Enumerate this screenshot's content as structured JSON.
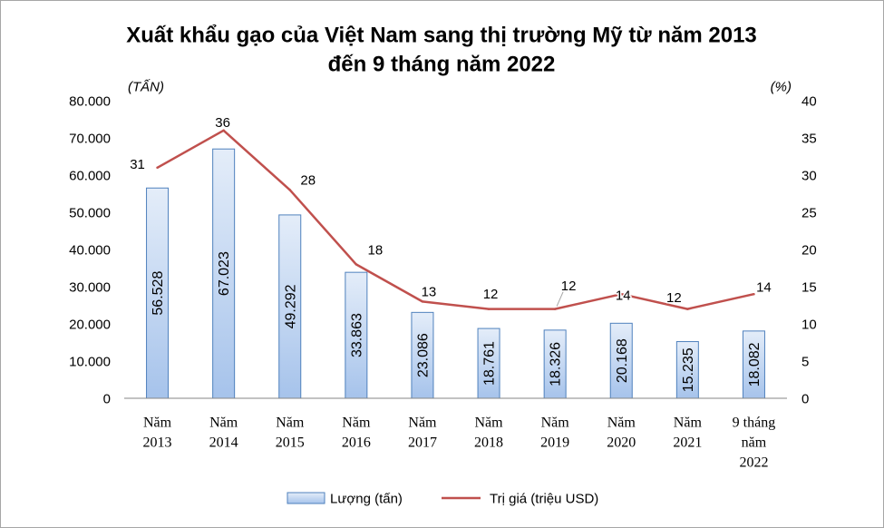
{
  "chart_data": {
    "type": "bar",
    "title_lines": [
      "Xuất khẩu gạo của Việt Nam sang thị trường Mỹ từ năm 2013",
      "đến 9 tháng năm 2022"
    ],
    "categories": [
      [
        "Năm",
        "2013"
      ],
      [
        "Năm",
        "2014"
      ],
      [
        "Năm",
        "2015"
      ],
      [
        "Năm",
        "2016"
      ],
      [
        "Năm",
        "2017"
      ],
      [
        "Năm",
        "2018"
      ],
      [
        "Năm",
        "2019"
      ],
      [
        "Năm",
        "2020"
      ],
      [
        "Năm",
        "2021"
      ],
      [
        "9 tháng",
        "năm",
        "2022"
      ]
    ],
    "y_left": {
      "label": "(TẤN)",
      "range": [
        0,
        80000
      ],
      "ticks": [
        "0",
        "10.000",
        "20.000",
        "30.000",
        "40.000",
        "50.000",
        "60.000",
        "70.000",
        "80.000"
      ]
    },
    "y_right": {
      "label": "(%)",
      "range": [
        0,
        40
      ],
      "ticks": [
        "0",
        "5",
        "10",
        "15",
        "20",
        "25",
        "30",
        "35",
        "40"
      ]
    },
    "series": [
      {
        "name": "Lượng (tấn)",
        "type": "bar",
        "axis": "left",
        "values": [
          56528,
          67023,
          49292,
          33863,
          23086,
          18761,
          18326,
          20168,
          15235,
          18082
        ],
        "data_labels": [
          "56.528",
          "67.023",
          "49.292",
          "33.863",
          "23.086",
          "18.761",
          "18.326",
          "20.168",
          "15.235",
          "18.082"
        ],
        "color": "#4f81bd",
        "fill_gradient": [
          "#e4edf9",
          "#a6c3eb"
        ]
      },
      {
        "name": "Trị giá (triệu USD)",
        "type": "line",
        "axis": "right",
        "values": [
          31,
          36,
          28,
          18,
          13,
          12,
          12,
          14,
          12,
          14
        ],
        "data_labels": [
          "31",
          "36",
          "28",
          "18",
          "13",
          "12",
          "12",
          "14",
          "12",
          "14"
        ],
        "color": "#c0504d"
      }
    ],
    "grid": false,
    "legend": "bottom"
  }
}
